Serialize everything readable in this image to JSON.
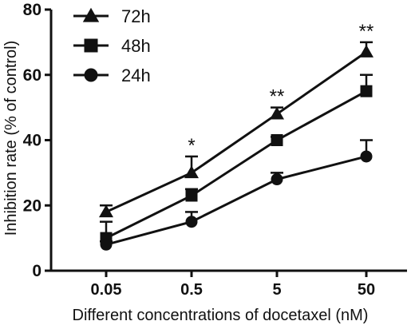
{
  "chart_data": {
    "type": "line",
    "title": "",
    "xlabel": "Different concentrations of docetaxel (nM)",
    "ylabel": "Inhibition rate (% of control)",
    "categories": [
      "0.05",
      "0.5",
      "5",
      "50"
    ],
    "ylim": [
      0,
      80
    ],
    "yticks": [
      0,
      20,
      40,
      60,
      80
    ],
    "grid": false,
    "legend_position": "top-left",
    "series": [
      {
        "name": "72h",
        "marker": "triangle",
        "values": [
          18,
          30,
          48,
          67
        ],
        "error": [
          2,
          5,
          2,
          3
        ]
      },
      {
        "name": "48h",
        "marker": "square",
        "values": [
          10,
          23,
          40,
          55
        ],
        "error": [
          5,
          2,
          1,
          5
        ]
      },
      {
        "name": "24h",
        "marker": "circle",
        "values": [
          8,
          15,
          28,
          35
        ],
        "error": [
          1,
          3,
          2,
          5
        ]
      }
    ],
    "annotations": [
      {
        "category": "0.5",
        "text": "*"
      },
      {
        "category": "5",
        "text": "**"
      },
      {
        "category": "50",
        "text": "**"
      }
    ],
    "color": "#111111"
  }
}
